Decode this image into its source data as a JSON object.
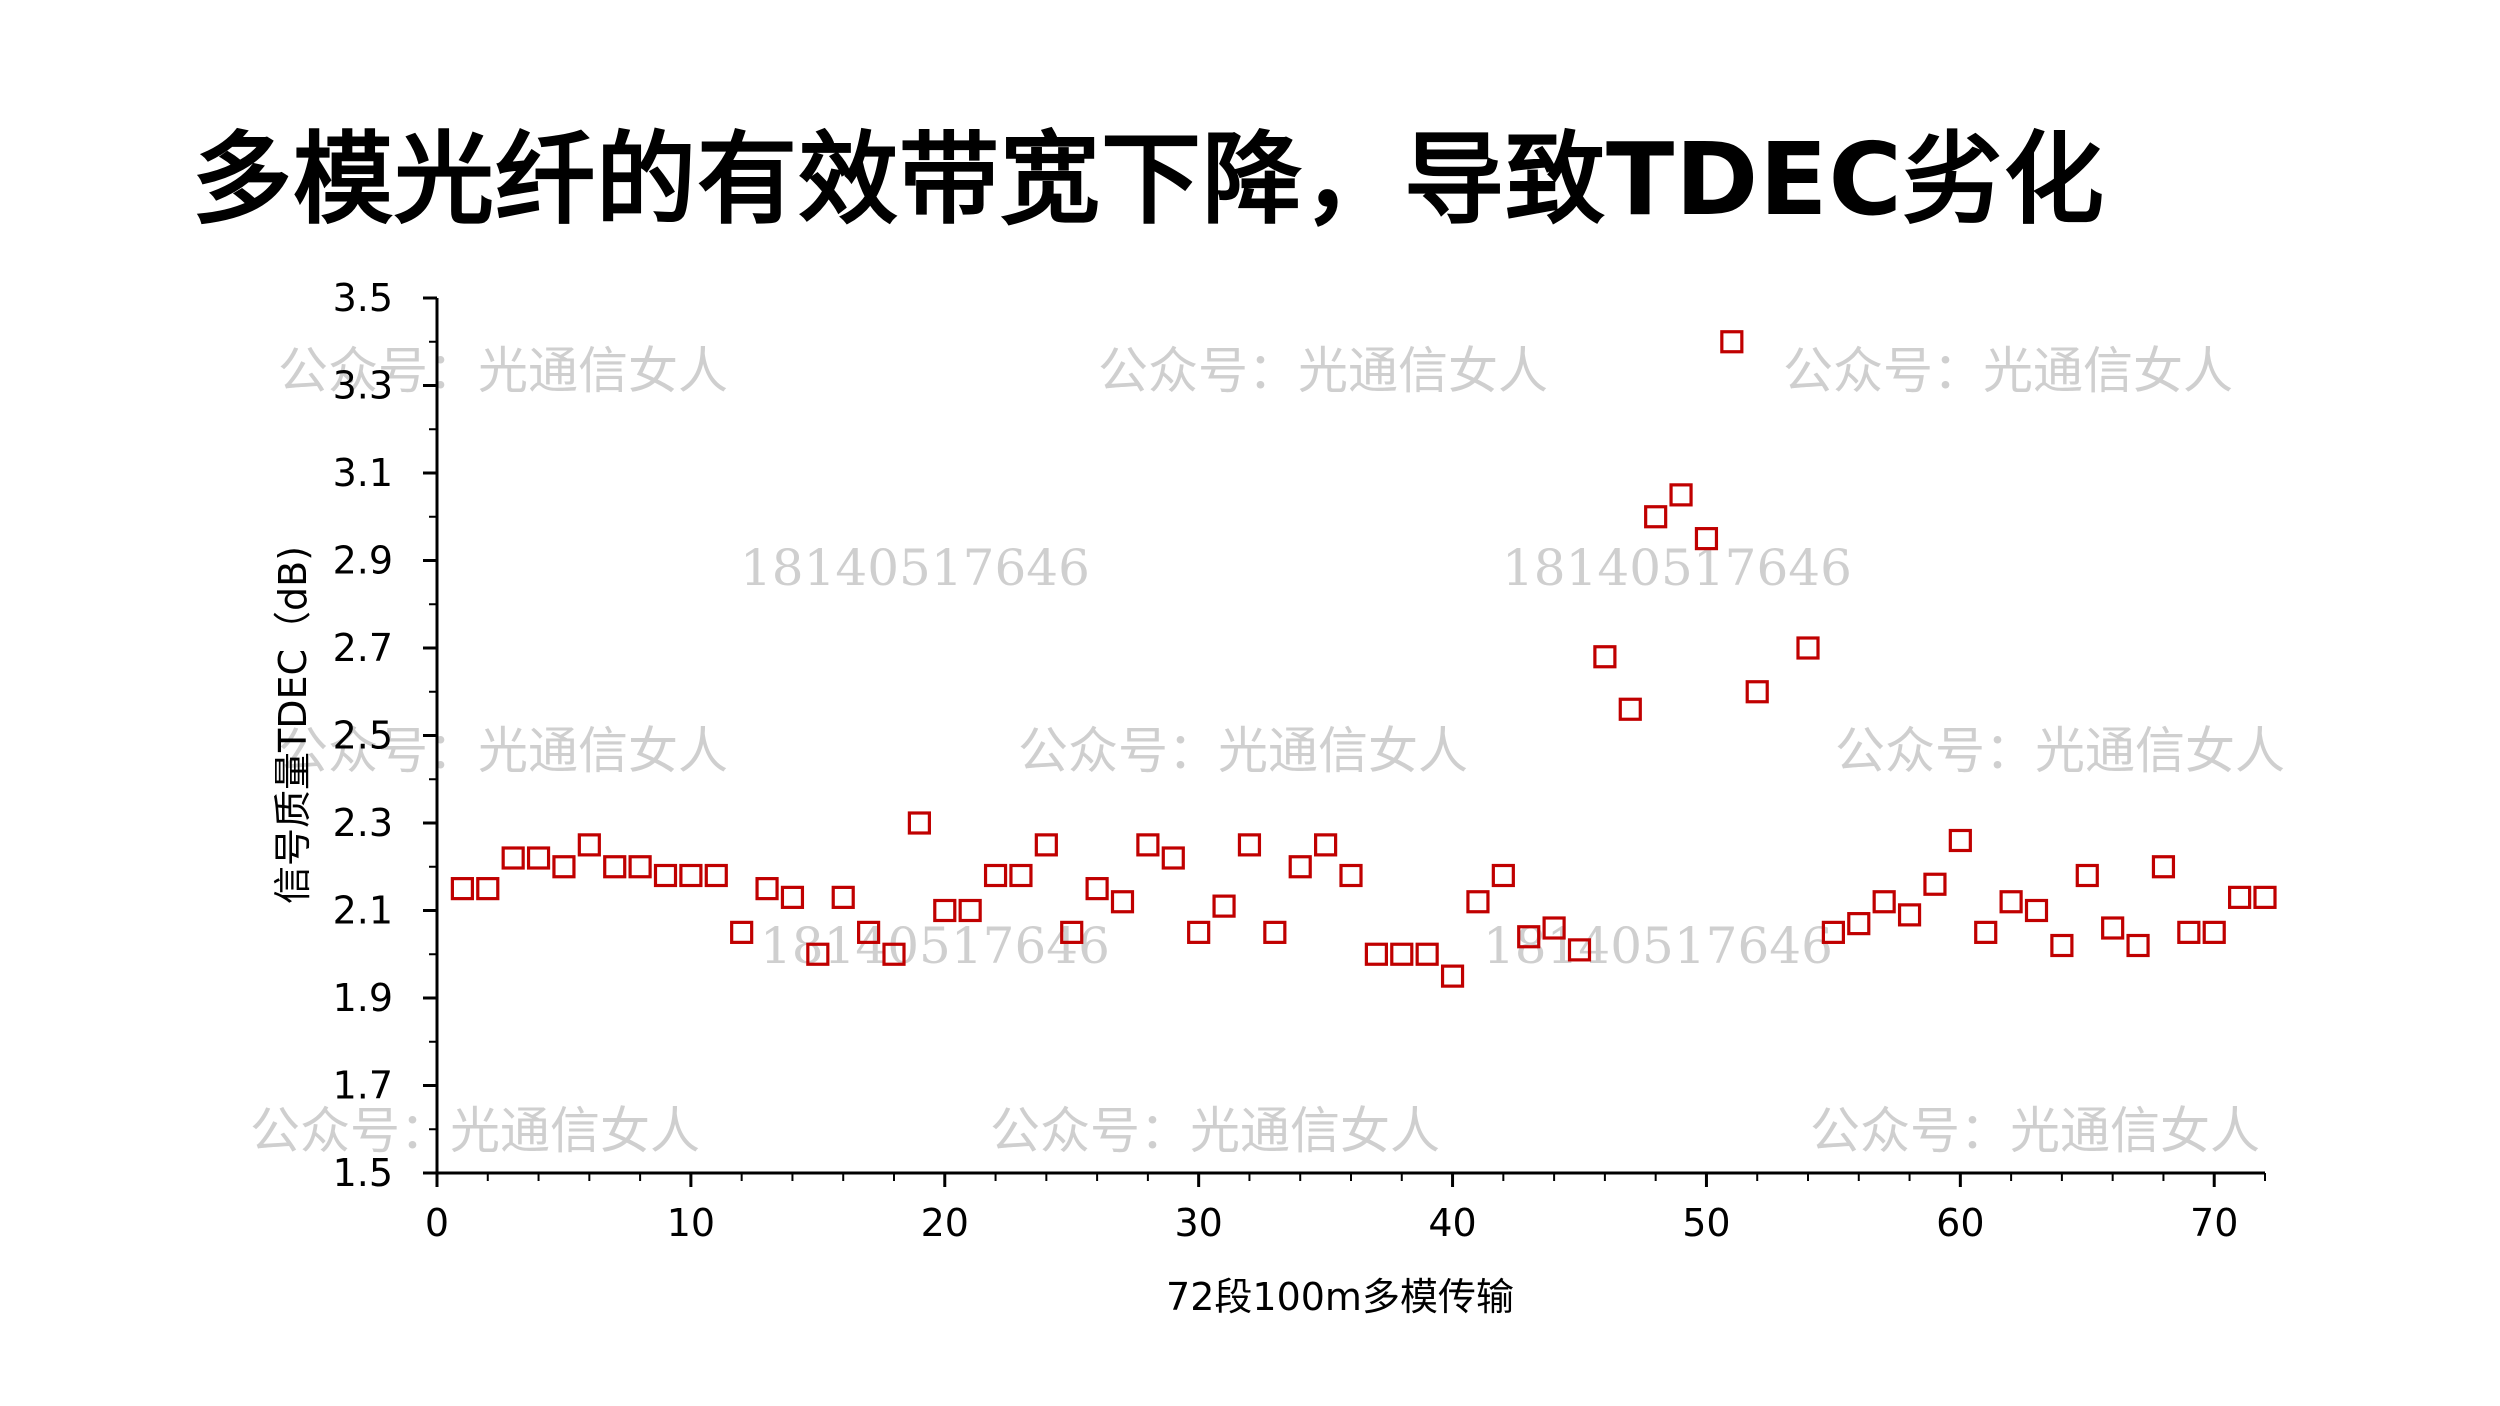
{
  "title": "多模光纤的有效带宽下降，导致TDEC劣化",
  "watermarks": {
    "account": "公众号：光通信女人",
    "phone": "18140517646"
  },
  "chart_data": {
    "type": "scatter",
    "xlabel": "72段100m多模传输",
    "ylabel": "信号质量TDEC（dB)",
    "xlim": [
      0,
      72
    ],
    "ylim": [
      1.5,
      3.5
    ],
    "x_ticks": [
      0,
      10,
      20,
      30,
      40,
      50,
      60,
      70
    ],
    "y_ticks": [
      1.5,
      1.7,
      1.9,
      2.1,
      2.3,
      2.5,
      2.7,
      2.9,
      3.1,
      3.3,
      3.5
    ],
    "grid": false,
    "marker": "hollow-square",
    "colors": {
      "marker": "#c00000",
      "axis": "#000000",
      "watermark": "#cfcfcf"
    },
    "x": [
      1,
      2,
      3,
      4,
      5,
      6,
      7,
      8,
      9,
      10,
      11,
      12,
      13,
      14,
      15,
      16,
      17,
      18,
      19,
      20,
      21,
      22,
      23,
      24,
      25,
      26,
      27,
      28,
      29,
      30,
      31,
      32,
      33,
      34,
      35,
      36,
      37,
      38,
      39,
      40,
      41,
      42,
      43,
      44,
      45,
      46,
      47,
      48,
      49,
      50,
      51,
      52,
      54,
      55,
      56,
      57,
      58,
      59,
      60,
      61,
      62,
      63,
      64,
      65,
      66,
      67,
      68,
      69,
      70,
      71,
      72
    ],
    "y": [
      2.15,
      2.15,
      2.22,
      2.22,
      2.2,
      2.25,
      2.2,
      2.2,
      2.18,
      2.18,
      2.18,
      2.05,
      2.15,
      2.13,
      2.0,
      2.13,
      2.05,
      2.0,
      2.3,
      2.1,
      2.1,
      2.18,
      2.18,
      2.25,
      2.05,
      2.15,
      2.12,
      2.25,
      2.22,
      2.05,
      2.11,
      2.25,
      2.05,
      2.2,
      2.25,
      2.18,
      2.0,
      2.0,
      2.0,
      1.95,
      2.12,
      2.18,
      2.04,
      2.06,
      2.01,
      2.68,
      2.56,
      3.0,
      3.05,
      2.95,
      3.4,
      2.6,
      2.7,
      2.05,
      2.07,
      2.12,
      2.09,
      2.16,
      2.26,
      2.05,
      2.12,
      2.1,
      2.02,
      2.18,
      2.06,
      2.02,
      2.2,
      2.05,
      2.05,
      2.13,
      2.13
    ]
  }
}
